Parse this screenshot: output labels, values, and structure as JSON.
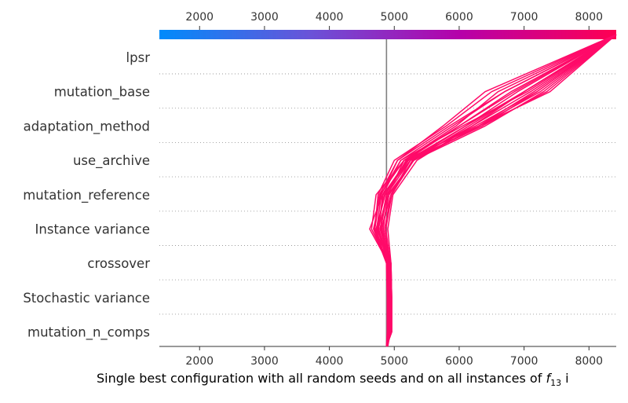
{
  "chart_data": {
    "type": "line",
    "subtype": "decision-plot",
    "xlabel_prefix": "Single best configuration with all random seeds and on all instances of ",
    "xlabel_symbol": "f",
    "xlabel_subscript": "13",
    "xlabel_suffix": " i",
    "xlim": [
      1380,
      8420
    ],
    "xticks": [
      2000,
      3000,
      4000,
      5000,
      6000,
      7000,
      8000
    ],
    "tick_labels": [
      "2000",
      "3000",
      "4000",
      "5000",
      "6000",
      "7000",
      "8000"
    ],
    "base_value": 4880,
    "features": [
      "lpsr",
      "mutation_base",
      "adaptation_method",
      "use_archive",
      "mutation_reference",
      "Instance variance",
      "crossover",
      "Stochastic variance",
      "mutation_n_comps"
    ],
    "colorbar_gradient": [
      "#008bfb",
      "#6a53d8",
      "#b600a9",
      "#ff0052"
    ],
    "line_color": "#ff0a69",
    "reference_line_color": "#808080",
    "grid": "dotted-row-separators",
    "series_points_bottom_to_top": [
      [
        4900,
        4940,
        4950,
        4940,
        4700,
        4780,
        5150,
        6300,
        7150,
        8420
      ],
      [
        4880,
        4920,
        4920,
        4910,
        4620,
        4820,
        5250,
        6350,
        7200,
        8420
      ],
      [
        4880,
        4960,
        4960,
        4950,
        4750,
        4900,
        5300,
        6400,
        7300,
        8420
      ],
      [
        4880,
        4900,
        4900,
        4880,
        4680,
        4790,
        5100,
        5900,
        6700,
        8420
      ],
      [
        4880,
        4930,
        4930,
        4920,
        4800,
        4950,
        5250,
        6200,
        7000,
        8420
      ],
      [
        4880,
        4950,
        4950,
        4940,
        4730,
        4800,
        5050,
        5750,
        6400,
        8420
      ],
      [
        4880,
        4900,
        4900,
        4890,
        4760,
        4830,
        5200,
        6100,
        7000,
        8420
      ],
      [
        4880,
        4940,
        4940,
        4930,
        4850,
        4950,
        5300,
        6300,
        7400,
        8420
      ],
      [
        4880,
        4910,
        4910,
        4900,
        4700,
        4750,
        5000,
        5800,
        6500,
        8420
      ],
      [
        4880,
        4960,
        4960,
        4950,
        4900,
        4980,
        5350,
        6200,
        7100,
        8420
      ],
      [
        4880,
        4920,
        4920,
        4910,
        4650,
        4720,
        5150,
        6000,
        6800,
        8420
      ],
      [
        4880,
        4950,
        4950,
        4940,
        4780,
        4880,
        5250,
        6100,
        6900,
        8420
      ],
      [
        4880,
        4890,
        4890,
        4880,
        4720,
        4860,
        5200,
        6250,
        7200,
        8420
      ],
      [
        4880,
        4940,
        4940,
        4920,
        4830,
        4900,
        5150,
        5950,
        6600,
        8420
      ],
      [
        4880,
        4930,
        4930,
        4920,
        4760,
        4820,
        5100,
        6050,
        7050,
        8420
      ],
      [
        4880,
        4960,
        4960,
        4950,
        4810,
        4920,
        5300,
        6300,
        7250,
        8420
      ],
      [
        4880,
        4900,
        4900,
        4890,
        4690,
        4770,
        5050,
        5850,
        6700,
        8420
      ],
      [
        4880,
        4950,
        4950,
        4940,
        4870,
        4960,
        5280,
        6150,
        7000,
        8420
      ],
      [
        4880,
        4920,
        4920,
        4910,
        4740,
        4850,
        5220,
        6350,
        7350,
        8420
      ],
      [
        4880,
        4940,
        4940,
        4930,
        4790,
        4890,
        5180,
        6000,
        6850,
        8420
      ]
    ]
  }
}
